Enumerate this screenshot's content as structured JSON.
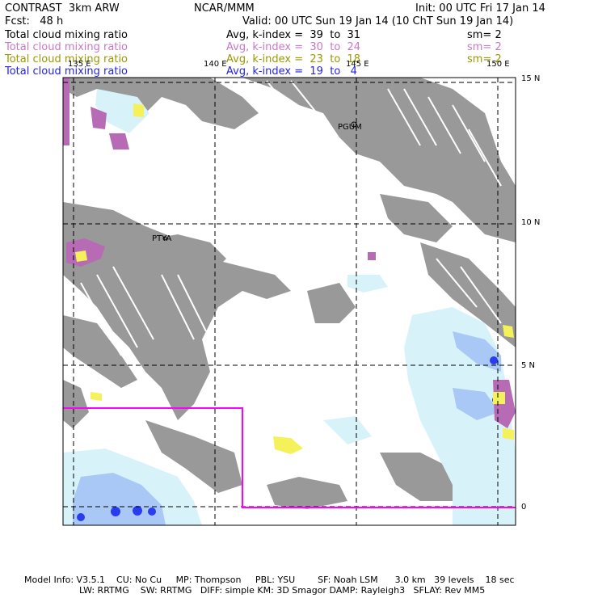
{
  "header": {
    "model": "CONTRAST  3km ARW",
    "center": "NCAR/MMM",
    "init": "Init: 00 UTC Fri 17 Jan 14",
    "fcst": "Fcst:   48 h",
    "valid": "Valid: 00 UTC Sun 19 Jan 14 (10 ChT Sun 19 Jan 14)"
  },
  "legend": [
    {
      "field": "Total cloud mixing ratio",
      "kindex": "Avg, k-index =  39  to  31",
      "sm": "sm= 2",
      "color": "#000000"
    },
    {
      "field": "Total cloud mixing ratio",
      "kindex": "Avg, k-index =  30  to  24",
      "sm": "sm= 2",
      "color": "#c878c8"
    },
    {
      "field": "Total cloud mixing ratio",
      "kindex": "Avg, k-index =  23  to  18",
      "sm": "sm= 2",
      "color": "#999900"
    },
    {
      "field": "Total cloud mixing ratio",
      "kindex": "Avg, k-index =  19  to   4",
      "sm": "",
      "color": "#2222ee"
    }
  ],
  "map": {
    "lon_labels": [
      "135 E",
      "140 E",
      "145 E",
      "150 E"
    ],
    "lat_labels": [
      "15 N",
      "10 N",
      "5 N",
      "0"
    ],
    "places": [
      "PGUM",
      "PTYA"
    ],
    "colors": {
      "gray": "#999999",
      "lightblue": "#d8f2fa",
      "midblue": "#a9c8f5",
      "darkblue": "#2a3cf0",
      "purple": "#b66bb4",
      "yellow": "#f5f15a",
      "magenta": "#ff00ff"
    }
  },
  "footer": {
    "line1": "Model Info: V3.5.1    CU: No Cu     MP: Thompson     PBL: YSU        SF: Noah LSM      3.0 km   39 levels    18 sec",
    "line2": "LW: RRTMG    SW: RRTMG   DIFF: simple KM: 3D Smagor DAMP: Rayleigh3   SFLAY: Rev MM5"
  }
}
